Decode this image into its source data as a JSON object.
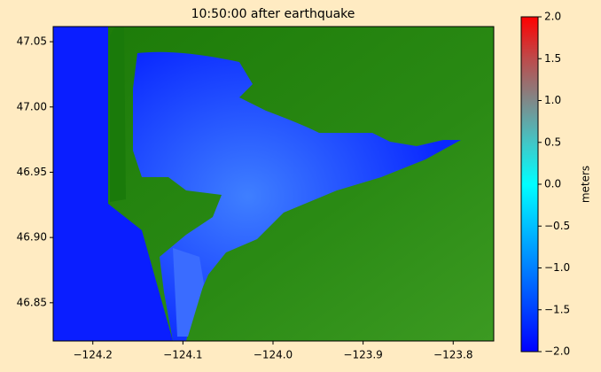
{
  "chart_data": {
    "type": "image",
    "title": "10:50:00 after earthquake",
    "xlim": [
      -124.244,
      -123.755
    ],
    "xticks": [
      {
        "value": -124.2,
        "label": "−124.2"
      },
      {
        "value": -124.1,
        "label": "−124.1"
      },
      {
        "value": -124.0,
        "label": "−124.0"
      },
      {
        "value": -123.9,
        "label": "−123.9"
      },
      {
        "value": -123.8,
        "label": "−123.8"
      }
    ],
    "ylim": [
      46.8207,
      47.0616
    ],
    "yticks": [
      46.85,
      {
        "value": 46.9,
        "label": "46.90"
      },
      46.95,
      {
        "value": 47.0,
        "label": "47.00"
      },
      47.05
    ],
    "colorbar": {
      "label": "meters",
      "lim": [
        -2,
        2
      ],
      "ticks": [
        {
          "value": -2,
          "label": "−2.0"
        },
        {
          "value": -1.5,
          "label": "−1.5"
        },
        {
          "value": -1,
          "label": "−1.0"
        },
        {
          "value": -0.5,
          "label": "−0.5"
        },
        {
          "value": 0,
          "label": "0.0"
        },
        {
          "value": 0.5,
          "label": "0.5"
        },
        {
          "value": 1,
          "label": "1.0"
        },
        {
          "value": 1.5,
          "label": "1.5"
        },
        {
          "value": 2,
          "label": "2.0"
        }
      ]
    }
  }
}
